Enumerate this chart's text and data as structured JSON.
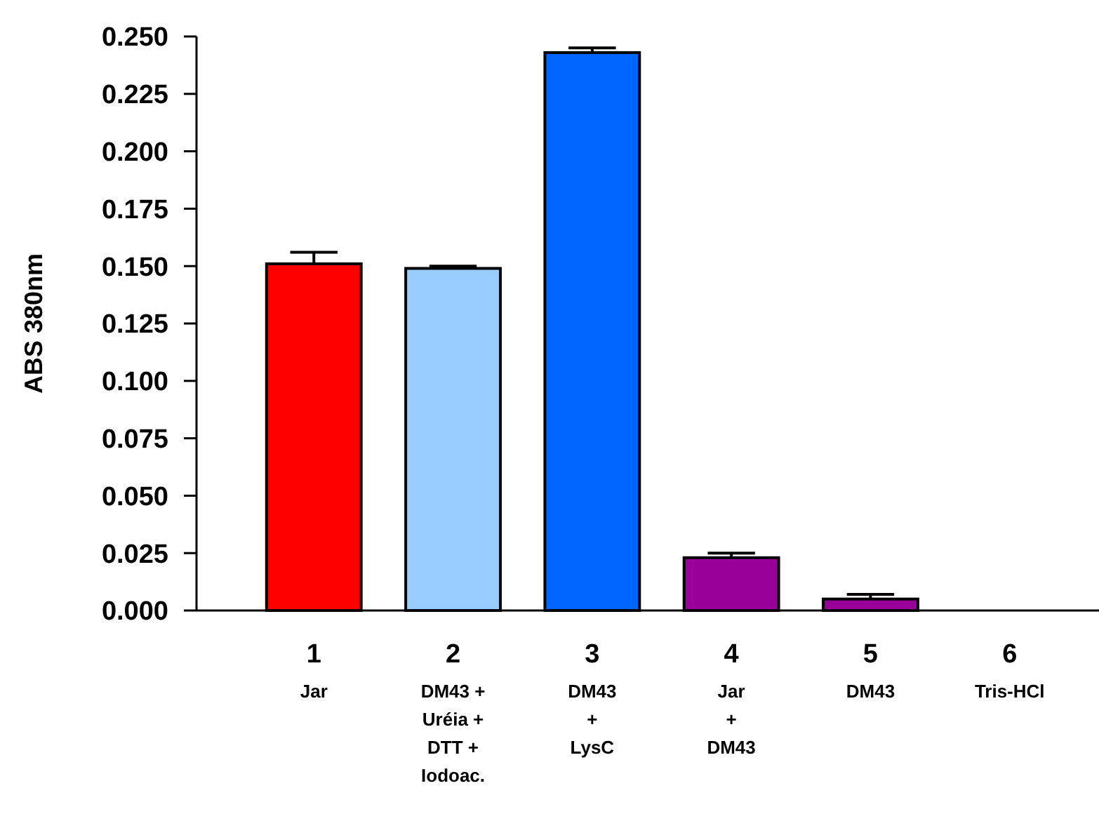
{
  "chart_data": {
    "type": "bar",
    "ylabel": "ABS 380nm",
    "categories": [
      "1\nJar",
      "2\nDM43 +\nUréia +\nDTT +\nIodoac.",
      "3\nDM43\n+\nLysC",
      "4\nJar\n+\nDM43",
      "5\nDM43",
      "6\nTris-HCl"
    ],
    "values": [
      0.151,
      0.149,
      0.243,
      0.023,
      0.005,
      0
    ],
    "errors": [
      [
        0.151,
        0.156
      ],
      [
        0.149,
        0.15
      ],
      [
        0.243,
        0.245
      ],
      [
        0.023,
        0.025
      ],
      [
        0.005,
        0.007
      ],
      null
    ],
    "colors": [
      "#ff0000",
      "#99ccff",
      "#0066ff",
      "#990099",
      "#990099",
      "#990099"
    ],
    "ylim": [
      0,
      0.25
    ],
    "yticks": [
      {
        "value": 0,
        "label": "0.000"
      },
      {
        "value": 0.025,
        "label": "0.025"
      },
      {
        "value": 0.05,
        "label": "0.050"
      },
      {
        "value": 0.075,
        "label": "0.075"
      },
      {
        "value": 0.1,
        "label": "0.100"
      },
      {
        "value": 0.125,
        "label": "0.125"
      },
      {
        "value": 0.15,
        "label": "0.150"
      },
      {
        "value": 0.175,
        "label": "0.175"
      },
      {
        "value": 0.2,
        "label": "0.200"
      },
      {
        "value": 0.225,
        "label": "0.225"
      },
      {
        "value": 0.25,
        "label": "0.250"
      }
    ],
    "grid": false
  }
}
